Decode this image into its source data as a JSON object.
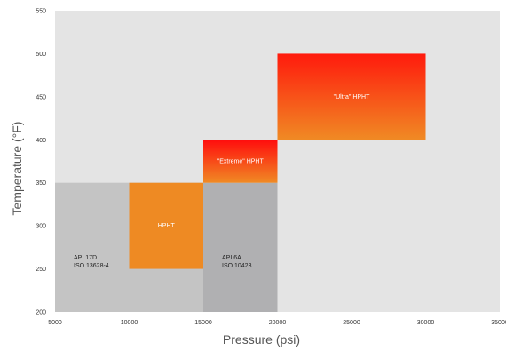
{
  "chart_data": {
    "type": "area",
    "xlabel": "Pressure (psi)",
    "ylabel": "Temperature (°F)",
    "xlim": [
      5000,
      35000
    ],
    "ylim": [
      200,
      550
    ],
    "x_ticks": [
      "5000",
      "10000",
      "15000",
      "20000",
      "25000",
      "30000",
      "35000"
    ],
    "y_ticks": [
      "200",
      "250",
      "300",
      "350",
      "400",
      "450",
      "500",
      "550"
    ],
    "grid": false,
    "zones": [
      {
        "name": "API 17D ISO 13628-4",
        "label_lines": [
          "API 17D",
          "ISO 13628-4"
        ],
        "x0": 5000,
        "x1": 15000,
        "y0": 200,
        "y1": 350,
        "fill": "#c4c4c4",
        "text_color": "#222222"
      },
      {
        "name": "API 6A ISO 10423",
        "label_lines": [
          "API 6A",
          "ISO 10423"
        ],
        "x0": 15000,
        "x1": 20000,
        "y0": 200,
        "y1": 350,
        "fill": "#b0b0b2",
        "text_color": "#222222"
      },
      {
        "name": "HPHT",
        "label_lines": [
          "HPHT"
        ],
        "x0": 10000,
        "x1": 15000,
        "y0": 250,
        "y1": 350,
        "fill": "#ee8a23",
        "text_color": "#ffffff"
      },
      {
        "name": "\"Extreme\" HPHT",
        "label_lines": [
          "\"Extreme\" HPHT"
        ],
        "x0": 15000,
        "x1": 20000,
        "y0": 350,
        "y1": 400,
        "gradient": [
          "#ff0d0d",
          "#f08a24"
        ],
        "text_color": "#ffffff"
      },
      {
        "name": "\"Ultra\" HPHT",
        "label_lines": [
          "\"Ultra\" HPHT"
        ],
        "x0": 20000,
        "x1": 30000,
        "y0": 400,
        "y1": 500,
        "gradient": [
          "#ff1a0d",
          "#f08a24"
        ],
        "text_color": "#ffffff"
      }
    ],
    "colors": {
      "plot_background": "#e4e4e4",
      "axis_title": "#555555"
    }
  }
}
